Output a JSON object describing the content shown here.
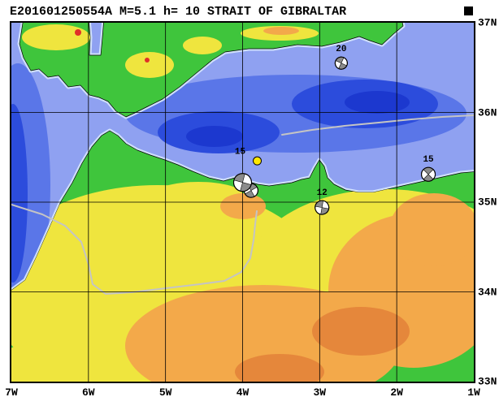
{
  "title": "E201601250554A M=5.1 h= 10 STRAIT OF GIBRALTAR",
  "map": {
    "region_name": "STRAIT OF GIBRALTAR",
    "lon_range": [
      -7,
      -1
    ],
    "lat_range": [
      33,
      37
    ],
    "grid_interval_deg": 1,
    "lon_labels": [
      "7W",
      "6W",
      "5W",
      "4W",
      "3W",
      "2W",
      "1W"
    ],
    "lat_labels": [
      "37N",
      "36N",
      "35N",
      "34N",
      "33N"
    ]
  },
  "event_summary": {
    "event_id": "E201601250554A",
    "magnitude_text": "M=5.1",
    "depth_text": "h= 10"
  },
  "events": [
    {
      "depth_label": "20",
      "lon": -2.72,
      "lat": 36.55,
      "radius": 7.5,
      "rotation": 25
    },
    {
      "depth_label": "",
      "lon": -3.89,
      "lat": 35.13,
      "radius": 8.5,
      "rotation": 60
    },
    {
      "depth_label": "15",
      "lon": -4.0,
      "lat": 35.22,
      "radius": 11,
      "rotation": 15,
      "label_dx": -3,
      "label_dy": -35
    },
    {
      "depth_label": "12",
      "lon": -2.97,
      "lat": 34.94,
      "radius": 8.5,
      "rotation": 10
    },
    {
      "depth_label": "15",
      "lon": -1.59,
      "lat": 35.31,
      "radius": 8.5,
      "rotation": 45
    }
  ],
  "epicenter": {
    "lon": -3.81,
    "lat": 35.46
  },
  "colors": {
    "sea_base": "#8fa1f1",
    "sea_mid": "#5a76e8",
    "sea_deep": "#2c4cdc",
    "sea_deep2": "#1c38cf",
    "sea_shelf": "#cfe0fb",
    "land_green": "#3fc53c",
    "land_yellow": "#efe53e",
    "land_orange": "#f3a94a",
    "land_orange2": "#e5873b",
    "land_red": "#e03028",
    "boundary_gray": "#c4c4c4",
    "ball_fill": "#8c8c8c",
    "marker_yellow": "#ffe800"
  }
}
